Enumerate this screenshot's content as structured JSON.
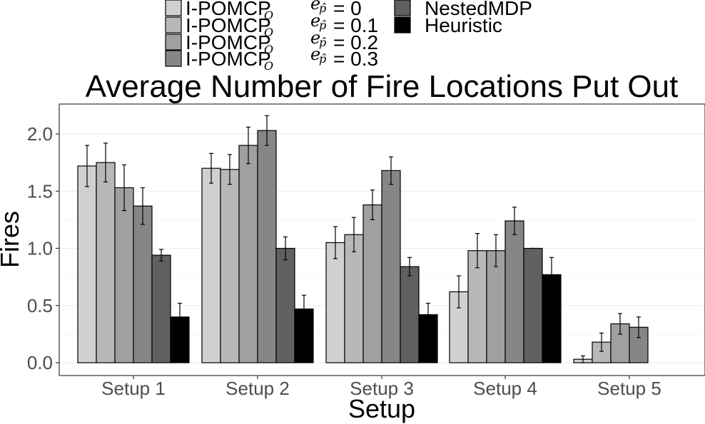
{
  "chart_data": {
    "type": "bar",
    "title": "Average Number of Fire Locations Put Out",
    "xlabel": "Setup",
    "ylabel": "Fires",
    "categories": [
      "Setup 1",
      "Setup 2",
      "Setup 3",
      "Setup 4",
      "Setup 5"
    ],
    "ylim": [
      0,
      2.2
    ],
    "yticks": [
      "0.0",
      "0.5",
      "1.0",
      "1.5",
      "2.0"
    ],
    "grid": true,
    "legend_position": "top",
    "series": [
      {
        "name": "I-POMCP",
        "subscript": "O",
        "e_label": "e",
        "e_subscript": "p̂",
        "e_value": "= 0",
        "color": "#d0d0d0",
        "values": [
          1.72,
          1.7,
          1.05,
          0.62,
          0.03
        ],
        "errors": [
          0.18,
          0.13,
          0.14,
          0.14,
          0.03
        ]
      },
      {
        "name": "I-POMCP",
        "subscript": "O",
        "e_label": "e",
        "e_subscript": "p̂",
        "e_value": "= 0.1",
        "color": "#b8b8b8",
        "values": [
          1.75,
          1.69,
          1.12,
          0.98,
          0.18
        ],
        "errors": [
          0.17,
          0.13,
          0.15,
          0.15,
          0.08
        ]
      },
      {
        "name": "I-POMCP",
        "subscript": "O",
        "e_label": "e",
        "e_subscript": "p̂",
        "e_value": "= 0.2",
        "color": "#a0a0a0",
        "values": [
          1.53,
          1.9,
          1.38,
          0.98,
          0.34
        ],
        "errors": [
          0.2,
          0.16,
          0.13,
          0.14,
          0.09
        ]
      },
      {
        "name": "I-POMCP",
        "subscript": "O",
        "e_label": "e",
        "e_subscript": "p̂",
        "e_value": "= 0.3",
        "color": "#868686",
        "values": [
          1.37,
          2.03,
          1.68,
          1.24,
          0.31
        ],
        "errors": [
          0.16,
          0.13,
          0.12,
          0.12,
          0.09
        ]
      },
      {
        "name": "NestedMDP",
        "color": "#606060",
        "values": [
          0.94,
          1.0,
          0.84,
          1.0,
          0.0
        ],
        "errors": [
          0.05,
          0.1,
          0.08,
          0.0,
          0.0
        ]
      },
      {
        "name": "Heuristic",
        "color": "#000000",
        "values": [
          0.4,
          0.47,
          0.42,
          0.77,
          0.0
        ],
        "errors": [
          0.12,
          0.12,
          0.1,
          0.15,
          0.0
        ]
      }
    ]
  }
}
